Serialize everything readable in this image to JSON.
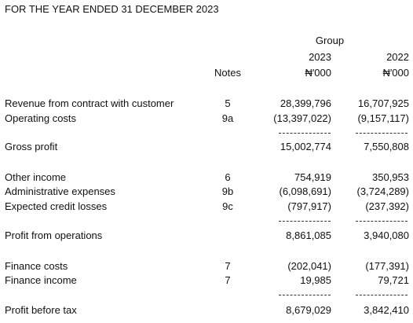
{
  "header": {
    "title": "FOR THE YEAR ENDED 31 DECEMBER 2023",
    "group": "Group",
    "notes": "Notes",
    "years": [
      "2023",
      "2022"
    ],
    "units": [
      "₦'000",
      "₦'000"
    ]
  },
  "rows": [
    {
      "label": "Revenue from contract with customer",
      "note": "5",
      "values": [
        "28,399,796",
        "16,707,925"
      ]
    },
    {
      "label": "Operating costs",
      "note": "9a",
      "values": [
        "(13,397,022)",
        "(9,157,117)"
      ]
    },
    {
      "label": "Gross profit",
      "values": [
        "15,002,774",
        "7,550,808"
      ]
    },
    {
      "label": "Other income",
      "note": "6",
      "values": [
        "754,919",
        "350,953"
      ]
    },
    {
      "label": "Administrative expenses",
      "note": "9b",
      "values": [
        "(6,098,691)",
        "(3,724,289)"
      ]
    },
    {
      "label": "Expected credit losses",
      "note": "9c",
      "values": [
        "(797,917)",
        "(237,392)"
      ]
    },
    {
      "label": "Profit from operations",
      "values": [
        "8,861,085",
        "3,940,080"
      ]
    },
    {
      "label": "Finance costs",
      "note": "7",
      "values": [
        "(202,041)",
        "(177,391)"
      ]
    },
    {
      "label": "Finance income",
      "note": "7",
      "values": [
        "19,985",
        "79,721"
      ]
    },
    {
      "label": "Profit before tax",
      "values": [
        "8,679,029",
        "3,842,410"
      ]
    }
  ]
}
